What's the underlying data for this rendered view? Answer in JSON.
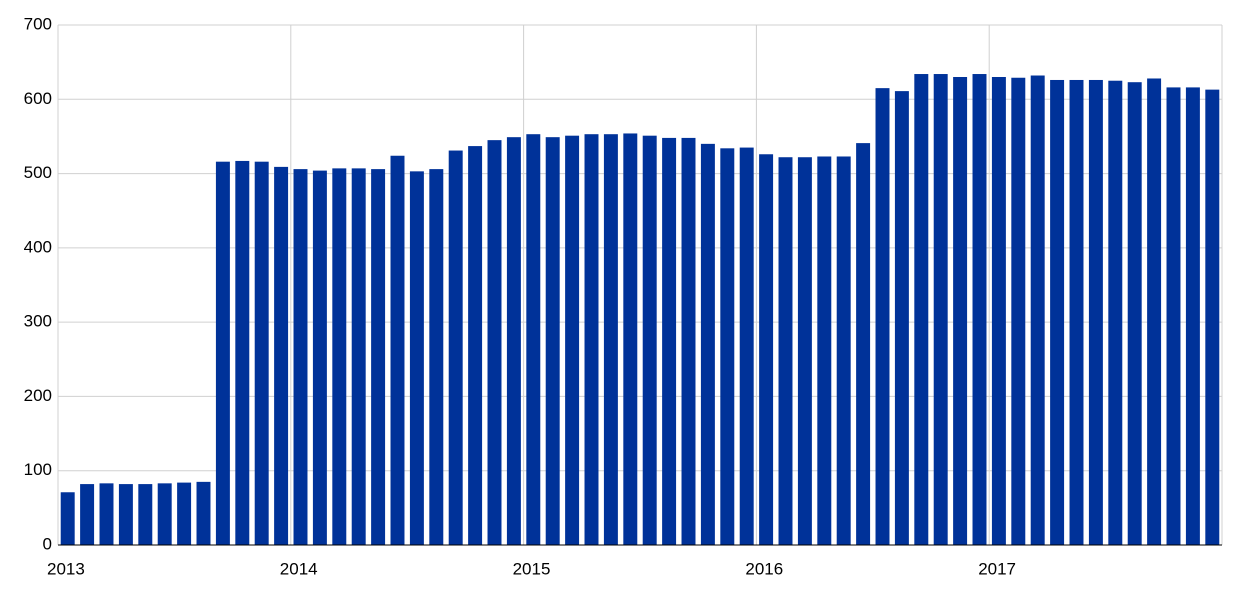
{
  "chart_data": {
    "type": "bar",
    "categories": [
      "2013",
      null,
      null,
      null,
      null,
      null,
      null,
      null,
      null,
      null,
      null,
      null,
      "2014",
      null,
      null,
      null,
      null,
      null,
      null,
      null,
      null,
      null,
      null,
      null,
      "2015",
      null,
      null,
      null,
      null,
      null,
      null,
      null,
      null,
      null,
      null,
      null,
      "2016",
      null,
      null,
      null,
      null,
      null,
      null,
      null,
      null,
      null,
      null,
      null,
      "2017",
      null,
      null,
      null,
      null,
      null,
      null,
      null,
      null,
      null,
      null,
      null
    ],
    "values": [
      71,
      82,
      83,
      82,
      82,
      83,
      84,
      85,
      516,
      517,
      516,
      509,
      506,
      504,
      507,
      507,
      506,
      524,
      503,
      506,
      531,
      537,
      545,
      549,
      553,
      549,
      551,
      553,
      553,
      554,
      551,
      548,
      548,
      540,
      534,
      535,
      526,
      522,
      522,
      523,
      523,
      541,
      615,
      611,
      634,
      634,
      630,
      634,
      630,
      629,
      632,
      626,
      626,
      626,
      625,
      623,
      628,
      616,
      616,
      613
    ],
    "color": "#003299",
    "ylim": [
      0,
      700
    ],
    "yticks": [
      0,
      100,
      200,
      300,
      400,
      500,
      600,
      700
    ],
    "grid": true
  }
}
